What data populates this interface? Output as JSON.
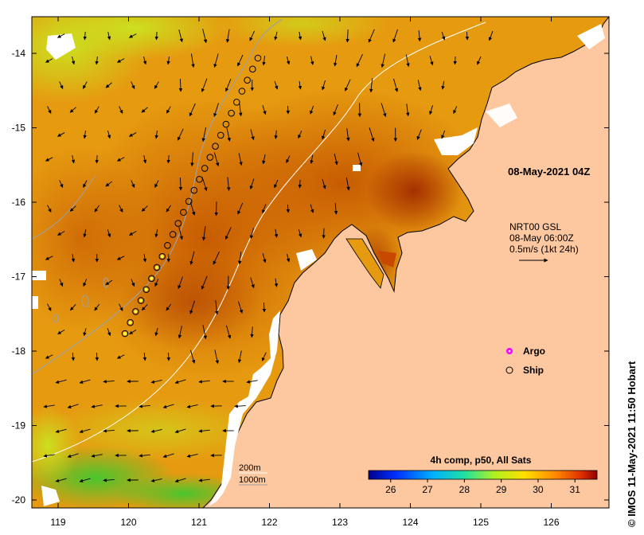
{
  "map": {
    "timestamp_label": "08-May-2021 04Z",
    "current_source": "NRT00 GSL",
    "current_time": "08-May 06:00Z",
    "current_scale": "0.5m/s (1kt 24h)",
    "legend": [
      {
        "label": "Argo",
        "icon": "argo-marker-icon",
        "color": "#ff00ff"
      },
      {
        "label": "Ship",
        "icon": "ship-marker-icon",
        "color": "#000000"
      }
    ],
    "isobaths": [
      {
        "label": "200m",
        "color": "#ffffff"
      },
      {
        "label": "1000m",
        "color": "#a0a0a0"
      }
    ],
    "colorbar": {
      "title": "4h comp, p50, All Sats",
      "ticks": [
        "26",
        "27",
        "28",
        "29",
        "30",
        "31"
      ],
      "min": 25.4,
      "max": 31.6
    },
    "lon_ticks": [
      "119",
      "120",
      "121",
      "122",
      "123",
      "124",
      "125",
      "126"
    ],
    "lat_ticks": [
      "-14",
      "-15",
      "-16",
      "-17",
      "-18",
      "-19",
      "-20"
    ],
    "copyright": "© IMOS 11-May-2021 11:50 Hobart",
    "colors": {
      "land": "#fdc8a0",
      "coast": "#000000",
      "warm": "#c85a00",
      "cool": "#70e020"
    }
  }
}
